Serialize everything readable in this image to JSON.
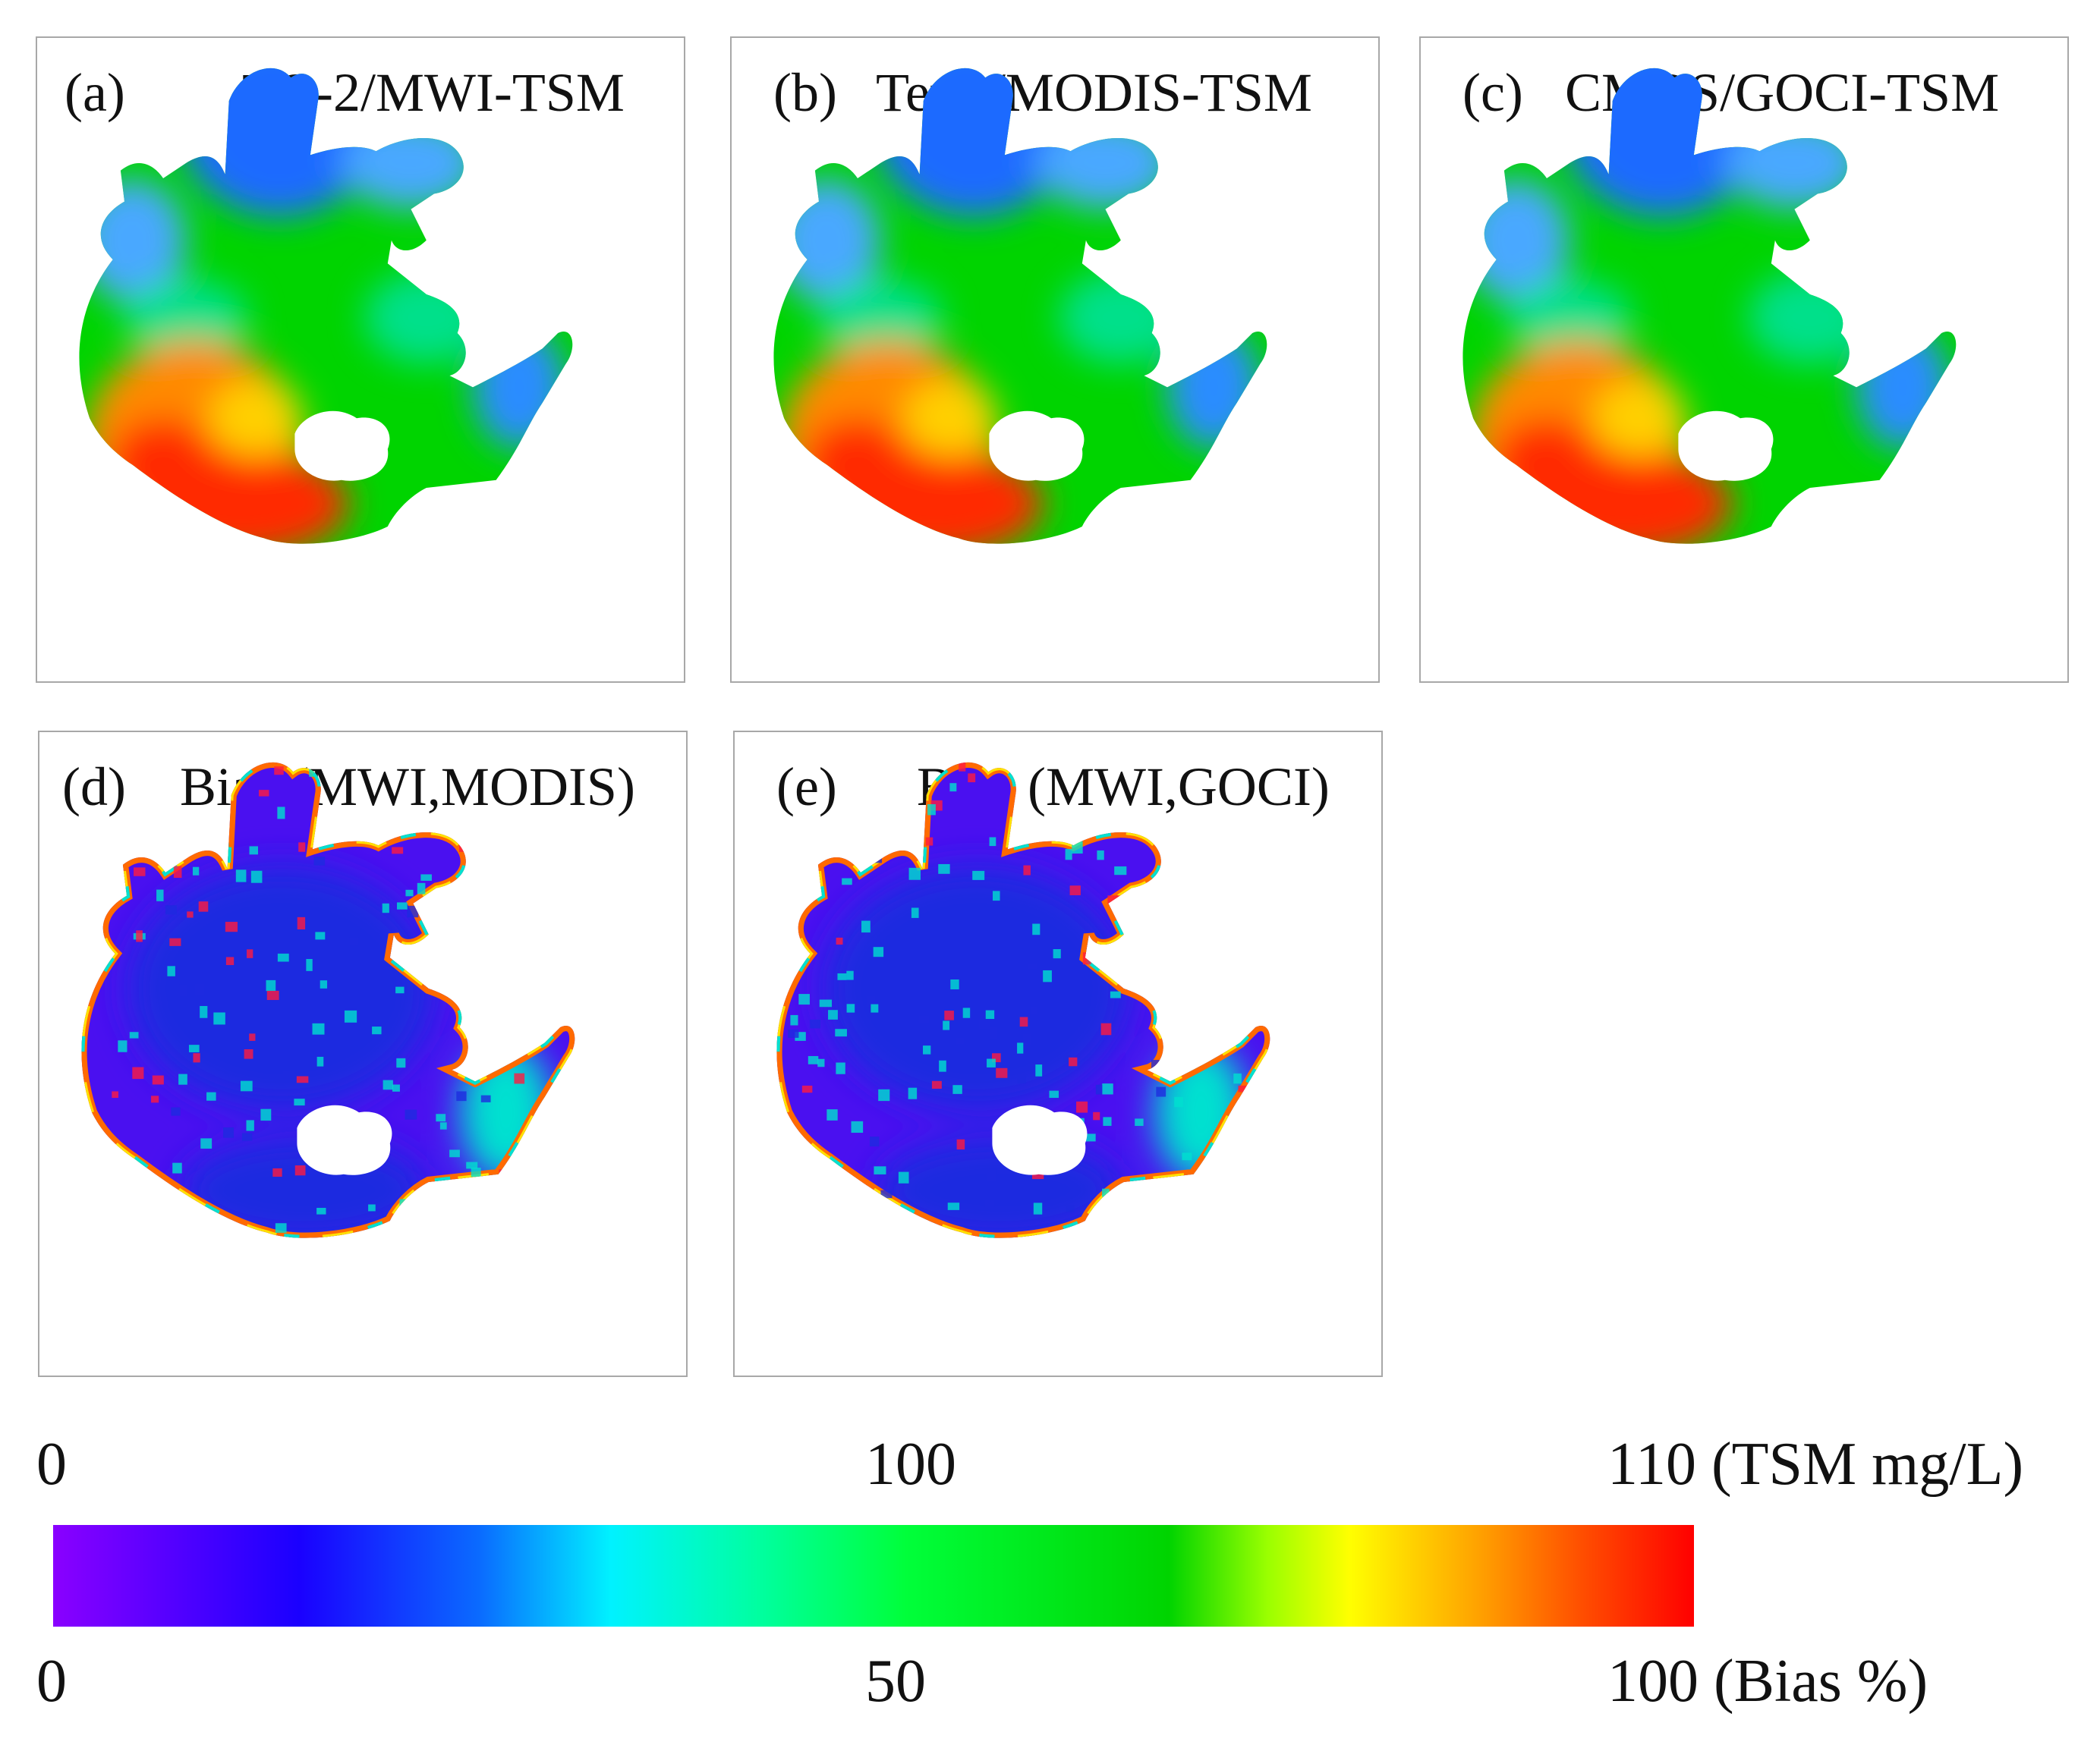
{
  "panels": [
    {
      "id": "a",
      "label": "(a)",
      "title": "TG-2/MWI-TSM",
      "palette": "tsm"
    },
    {
      "id": "b",
      "label": "(b)",
      "title": "Terra/MODIS-TSM",
      "palette": "tsm"
    },
    {
      "id": "c",
      "label": "(c)",
      "title": "CMOS/GOCI-TSM",
      "palette": "tsm"
    },
    {
      "id": "d",
      "label": "(d)",
      "title": "Bias (MWI,MODIS)",
      "palette": "bias"
    },
    {
      "id": "e",
      "label": "(e)",
      "title": "Bias (MWI,GOCI)",
      "palette": "bias"
    }
  ],
  "colorbar": {
    "tsm_ticks": {
      "left": "0",
      "middle": "100",
      "right": "110 (TSM mg/L)"
    },
    "bias_ticks": {
      "left": "0",
      "middle": "50",
      "right": "100 (Bias %)"
    },
    "colors": [
      "#8a00ff",
      "#1a00ff",
      "#0a6bff",
      "#00f2ff",
      "#00ffa0",
      "#00ff3a",
      "#00d400",
      "#9aff00",
      "#ffff00",
      "#ffa000",
      "#ff5000",
      "#ff0000"
    ]
  },
  "palette_colors": {
    "tsm": {
      "north": "#1f6bff",
      "north2": "#4aa8ff",
      "mid": "#00e08a",
      "center": "#00d400",
      "south": "#ff8a00",
      "south2": "#ff2a00",
      "south3": "#ffd000",
      "bay": "#2c8cff"
    },
    "bias": {
      "base": "#4a10f0",
      "base2": "#1e2ae0",
      "rim1": "#ff6a00",
      "rim2": "#ffe000",
      "rim3": "#00e0d0",
      "speck": "#ff1a40"
    }
  }
}
